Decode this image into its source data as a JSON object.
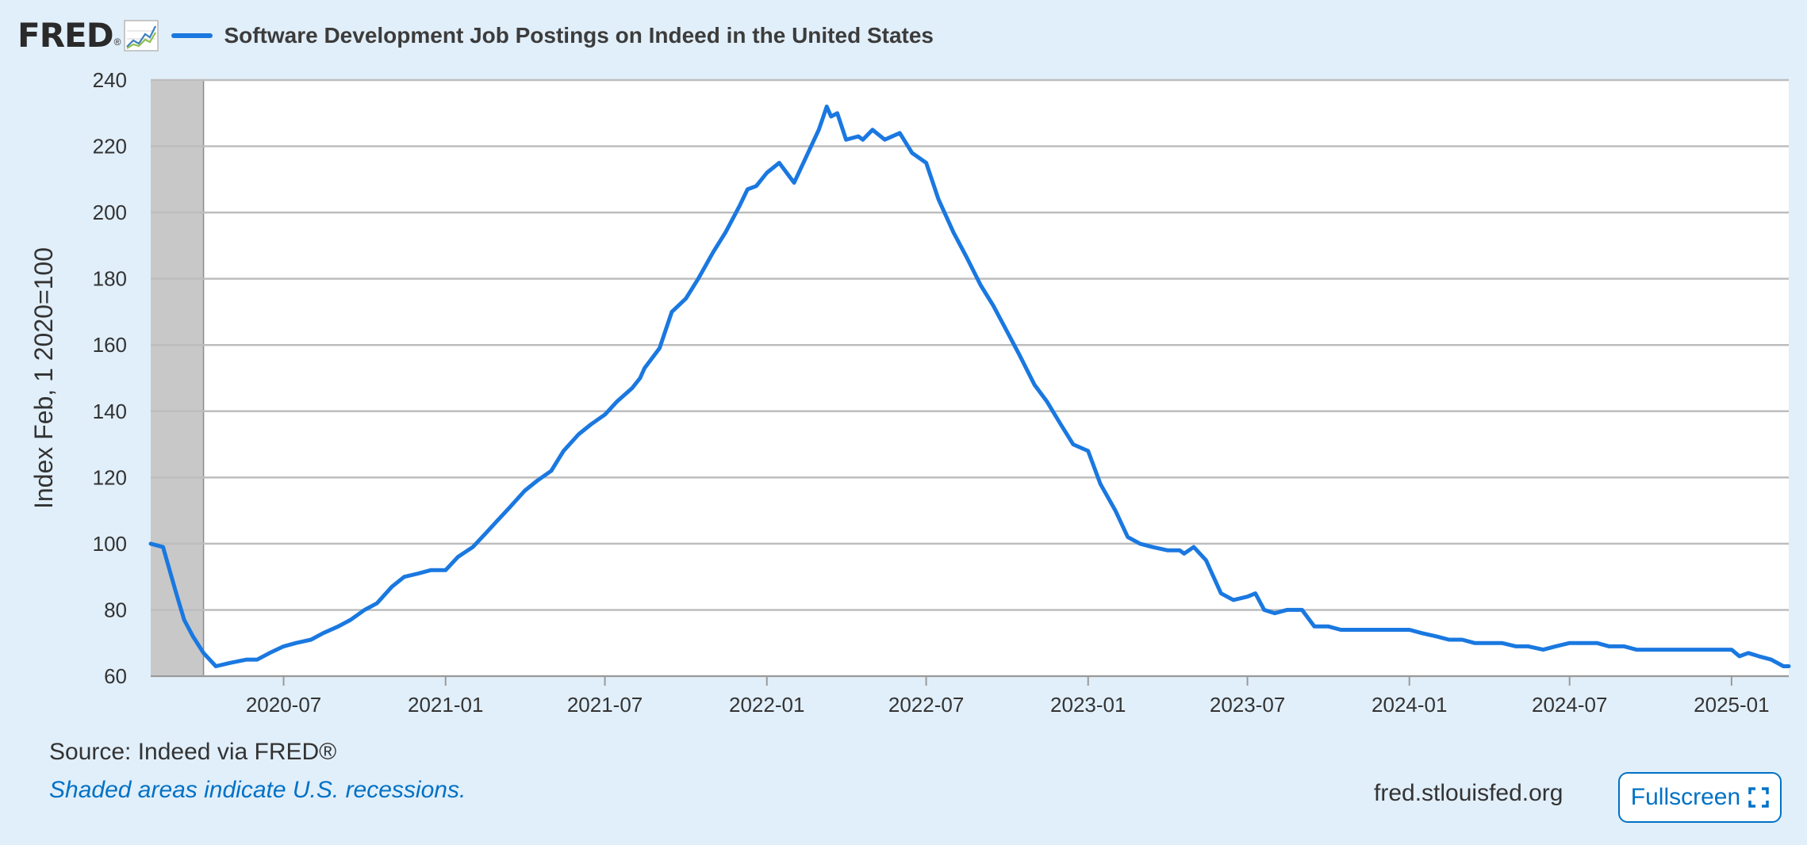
{
  "header": {
    "logo_text": "FRED",
    "logo_mark": "®",
    "logo_icon": "trend-graph-icon"
  },
  "colors": {
    "series": "#1a78e0",
    "recession": "#c8c8c8",
    "grid": "#bdbdbd",
    "plot_bg": "#ffffff",
    "page_bg": "#e1effa",
    "link": "#0071c5"
  },
  "chart_data": {
    "type": "line",
    "title": "",
    "xlabel": "",
    "ylabel": "Index Feb, 1 2020=100",
    "ylim": [
      60,
      240
    ],
    "xlim": [
      "2020-02-01",
      "2025-03-07"
    ],
    "yticks": [
      "60",
      "80",
      "100",
      "120",
      "140",
      "160",
      "180",
      "200",
      "220",
      "240"
    ],
    "xticks": [
      "2020-07",
      "2021-01",
      "2021-07",
      "2022-01",
      "2022-07",
      "2023-01",
      "2023-07",
      "2024-01",
      "2024-07",
      "2025-01"
    ],
    "grid": true,
    "legend": "top-left",
    "recessions": [
      {
        "start": "2020-02-01",
        "end": "2020-04-01"
      }
    ],
    "series": [
      {
        "name": "Software Development Job Postings on Indeed in the United States",
        "x": [
          "2020-02-01",
          "2020-02-15",
          "2020-03-01",
          "2020-03-10",
          "2020-03-20",
          "2020-04-01",
          "2020-04-15",
          "2020-05-01",
          "2020-05-20",
          "2020-06-01",
          "2020-06-15",
          "2020-07-01",
          "2020-07-15",
          "2020-08-01",
          "2020-08-15",
          "2020-09-01",
          "2020-09-15",
          "2020-10-01",
          "2020-10-15",
          "2020-11-01",
          "2020-11-15",
          "2020-12-01",
          "2020-12-15",
          "2021-01-01",
          "2021-01-15",
          "2021-02-01",
          "2021-02-15",
          "2021-03-01",
          "2021-03-15",
          "2021-04-01",
          "2021-04-15",
          "2021-05-01",
          "2021-05-15",
          "2021-06-01",
          "2021-06-15",
          "2021-07-01",
          "2021-07-15",
          "2021-08-01",
          "2021-08-10",
          "2021-08-15",
          "2021-09-01",
          "2021-09-15",
          "2021-10-01",
          "2021-10-15",
          "2021-11-01",
          "2021-11-15",
          "2021-12-01",
          "2021-12-10",
          "2021-12-20",
          "2022-01-01",
          "2022-01-15",
          "2022-02-01",
          "2022-02-15",
          "2022-03-01",
          "2022-03-05",
          "2022-03-10",
          "2022-03-15",
          "2022-03-22",
          "2022-04-01",
          "2022-04-15",
          "2022-04-20",
          "2022-05-01",
          "2022-05-15",
          "2022-06-01",
          "2022-06-15",
          "2022-07-01",
          "2022-07-15",
          "2022-08-01",
          "2022-08-15",
          "2022-09-01",
          "2022-09-15",
          "2022-10-01",
          "2022-10-15",
          "2022-11-01",
          "2022-11-15",
          "2022-12-01",
          "2022-12-15",
          "2023-01-01",
          "2023-01-15",
          "2023-02-01",
          "2023-02-15",
          "2023-03-01",
          "2023-03-15",
          "2023-04-01",
          "2023-04-15",
          "2023-04-20",
          "2023-05-01",
          "2023-05-15",
          "2023-06-01",
          "2023-06-15",
          "2023-07-01",
          "2023-07-10",
          "2023-07-20",
          "2023-08-01",
          "2023-08-15",
          "2023-09-01",
          "2023-09-15",
          "2023-10-01",
          "2023-10-15",
          "2023-11-01",
          "2023-11-15",
          "2023-12-01",
          "2023-12-15",
          "2024-01-01",
          "2024-01-15",
          "2024-02-01",
          "2024-02-15",
          "2024-03-01",
          "2024-03-15",
          "2024-04-01",
          "2024-04-15",
          "2024-05-01",
          "2024-05-15",
          "2024-06-01",
          "2024-06-15",
          "2024-07-01",
          "2024-07-15",
          "2024-08-01",
          "2024-08-15",
          "2024-09-01",
          "2024-09-15",
          "2024-10-01",
          "2024-10-15",
          "2024-11-01",
          "2024-11-15",
          "2024-12-01",
          "2024-12-15",
          "2025-01-01",
          "2025-01-10",
          "2025-01-20",
          "2025-02-01",
          "2025-02-15",
          "2025-03-01",
          "2025-03-07"
        ],
        "values": [
          100,
          99,
          85,
          77,
          72,
          67,
          63,
          64,
          65,
          65,
          67,
          69,
          70,
          71,
          73,
          75,
          77,
          80,
          82,
          87,
          90,
          91,
          92,
          92,
          96,
          99,
          103,
          107,
          111,
          116,
          119,
          122,
          128,
          133,
          136,
          139,
          143,
          147,
          150,
          153,
          159,
          170,
          174,
          180,
          188,
          194,
          202,
          207,
          208,
          212,
          215,
          209,
          217,
          225,
          228,
          232,
          229,
          230,
          222,
          223,
          222,
          225,
          222,
          224,
          218,
          215,
          204,
          194,
          187,
          178,
          172,
          164,
          157,
          148,
          143,
          136,
          130,
          128,
          118,
          110,
          102,
          100,
          99,
          98,
          98,
          97,
          99,
          95,
          85,
          83,
          84,
          85,
          80,
          79,
          80,
          80,
          75,
          75,
          74,
          74,
          74,
          74,
          74,
          74,
          73,
          72,
          71,
          71,
          70,
          70,
          70,
          69,
          69,
          68,
          69,
          70,
          70,
          70,
          69,
          69,
          68,
          68,
          68,
          68,
          68,
          68,
          68,
          68,
          66,
          67,
          66,
          65,
          63,
          63
        ]
      }
    ]
  },
  "footer": {
    "source": "Source: Indeed via FRED®",
    "recession_note": "Shaded areas indicate U.S. recessions.",
    "site": "fred.stlouisfed.org",
    "fullscreen_label": "Fullscreen",
    "fullscreen_icon": "expand-icon"
  }
}
